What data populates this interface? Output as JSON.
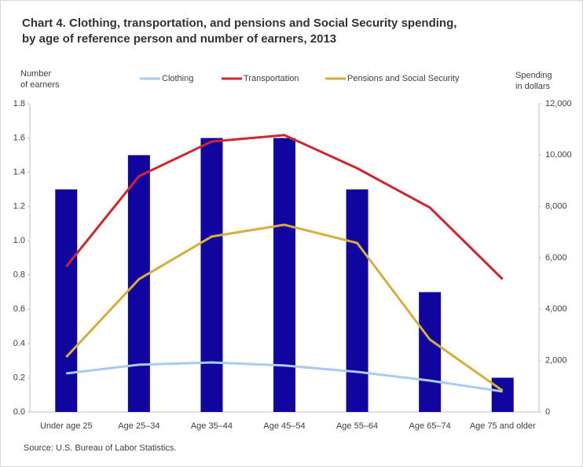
{
  "chart_data": {
    "type": "bar-line",
    "title": [
      "Chart 4. Clothing, transportation, and pensions and Social Security spending,",
      "by age of reference person and number of earners, 2013"
    ],
    "ylabel": [
      "Number",
      "of earners"
    ],
    "y2label": [
      "Spending",
      "in dollars"
    ],
    "source": "Source: U.S. Bureau of Labor Statistics.",
    "categories": [
      "Under age 25",
      "Age 25–34",
      "Age 35–44",
      "Age 45–54",
      "Age 55–64",
      "Age 65–74",
      "Age 75 and older"
    ],
    "bar_series": {
      "color": "#10069f",
      "values": [
        1.3,
        1.5,
        1.6,
        1.6,
        1.3,
        0.7,
        0.2
      ]
    },
    "series": [
      {
        "name": "Clothing",
        "color": "#a8cbf2",
        "axis": "y2",
        "values": [
          1500,
          1840,
          1930,
          1810,
          1560,
          1220,
          800
        ]
      },
      {
        "name": "Transportation",
        "color": "#d0262e",
        "axis": "y2",
        "values": [
          5660,
          9180,
          10530,
          10780,
          9490,
          7960,
          5170
        ]
      },
      {
        "name": "Pensions and Social Security",
        "color": "#d9ad3c",
        "axis": "y2",
        "values": [
          2140,
          5170,
          6830,
          7290,
          6580,
          2820,
          830
        ]
      }
    ],
    "ylim": [
      0,
      1.8
    ],
    "yticks": [
      {
        "value": 0,
        "label": "0.0"
      },
      0.2,
      0.4,
      0.6,
      0.8,
      {
        "value": 1,
        "label": "1.0"
      },
      1.2,
      1.4,
      1.6,
      1.8
    ],
    "y2lim": [
      0,
      12000
    ],
    "y2ticks": [
      0,
      {
        "value": 2000,
        "label": "2,000"
      },
      {
        "value": 4000,
        "label": "4,000"
      },
      {
        "value": 6000,
        "label": "6,000"
      },
      {
        "value": 8000,
        "label": "8,000"
      },
      {
        "value": 10000,
        "label": "10,000"
      },
      {
        "value": 12000,
        "label": "12,000"
      }
    ]
  }
}
